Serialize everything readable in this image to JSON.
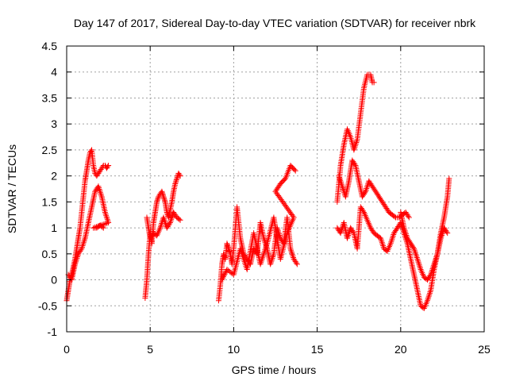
{
  "chart_data": {
    "type": "scatter",
    "title": "Day 147 of 2017, Sidereal Day-to-day VTEC variation (SDTVAR) for receiver nbrk",
    "xlabel": "GPS time / hours",
    "ylabel": "SDTVAR / TECUs",
    "xlim": [
      0,
      25
    ],
    "ylim": [
      -1,
      4.5
    ],
    "x_ticks": [
      0,
      5,
      10,
      15,
      20,
      25
    ],
    "x_tick_labels": [
      "0",
      "5",
      "10",
      "15",
      "20",
      "25"
    ],
    "y_ticks": [
      -1,
      -0.5,
      0,
      0.5,
      1,
      1.5,
      2,
      2.5,
      3,
      3.5,
      4,
      4.5
    ],
    "y_tick_labels": [
      "-1",
      "-0.5",
      "0",
      "0.5",
      "1",
      "1.5",
      "2",
      "2.5",
      "3",
      "3.5",
      "4",
      "4.5"
    ],
    "grid": true,
    "marker": "+",
    "color": "#ff0000",
    "series": [
      {
        "name": "segment-1-upper",
        "x": [
          0.0,
          0.1,
          0.2,
          0.3,
          0.4,
          0.5,
          0.6,
          0.7,
          0.8,
          0.9,
          1.0,
          1.1,
          1.2,
          1.3,
          1.4,
          1.5,
          1.6,
          1.7,
          1.8,
          1.9,
          2.0,
          2.1,
          2.2,
          2.3,
          2.4,
          2.5
        ],
        "y": [
          -0.4,
          -0.2,
          0.0,
          0.1,
          0.25,
          0.4,
          0.6,
          0.8,
          1.0,
          1.3,
          1.6,
          1.9,
          2.1,
          2.3,
          2.45,
          2.5,
          2.2,
          2.05,
          2.0,
          2.05,
          2.1,
          2.15,
          2.2,
          2.2,
          2.15,
          2.2
        ]
      },
      {
        "name": "segment-1-lower",
        "x": [
          0.1,
          0.3,
          0.5,
          0.7,
          0.9,
          1.1,
          1.3,
          1.5,
          1.7,
          1.9,
          2.1,
          2.3,
          2.5,
          1.6,
          1.8,
          2.0,
          2.2
        ],
        "y": [
          0.1,
          0.0,
          0.3,
          0.5,
          0.6,
          0.8,
          1.1,
          1.4,
          1.7,
          1.8,
          1.6,
          1.3,
          1.1,
          1.0,
          1.0,
          1.05,
          1.0
        ]
      },
      {
        "name": "segment-2",
        "x": [
          4.7,
          4.8,
          4.9,
          5.0,
          5.1,
          5.2,
          5.3,
          5.4,
          5.5,
          5.6,
          5.7,
          5.8,
          5.9,
          6.0,
          6.1,
          6.2,
          6.3,
          6.4,
          6.5,
          6.6,
          6.7,
          6.8,
          4.8,
          5.0,
          5.2,
          5.4,
          5.6,
          5.8,
          6.0,
          6.2,
          6.4,
          6.6,
          6.8
        ],
        "y": [
          -0.35,
          0.0,
          0.5,
          0.9,
          0.7,
          1.1,
          1.3,
          1.5,
          1.6,
          1.65,
          1.7,
          1.6,
          1.5,
          1.3,
          1.2,
          1.35,
          1.5,
          1.7,
          1.85,
          1.95,
          2.05,
          2.0,
          1.2,
          0.8,
          0.9,
          0.85,
          1.0,
          1.2,
          1.0,
          1.1,
          1.3,
          1.2,
          1.15
        ]
      },
      {
        "name": "segment-3",
        "x": [
          9.1,
          9.2,
          9.3,
          9.4,
          9.5,
          9.6,
          9.7,
          9.8,
          9.9,
          10.0,
          10.2,
          10.4,
          10.6,
          10.8,
          11.0,
          11.2,
          11.4,
          11.6,
          11.8,
          12.0,
          12.2,
          12.4,
          12.6,
          12.8,
          13.0,
          13.2,
          13.4,
          13.6,
          13.8,
          9.3,
          9.6,
          10.0,
          10.4,
          10.8,
          11.2,
          11.6,
          12.0,
          12.4,
          12.8,
          13.2,
          13.6,
          12.5,
          12.8,
          13.1,
          13.4,
          13.7
        ],
        "y": [
          -0.4,
          -0.1,
          0.3,
          0.5,
          0.4,
          0.7,
          0.6,
          0.5,
          0.3,
          0.6,
          1.4,
          0.8,
          0.5,
          0.4,
          0.3,
          0.6,
          0.5,
          1.1,
          0.8,
          0.6,
          0.3,
          0.5,
          1.0,
          0.8,
          0.7,
          1.2,
          0.6,
          0.4,
          0.3,
          0.0,
          0.2,
          0.1,
          0.6,
          0.2,
          0.9,
          0.3,
          0.7,
          1.2,
          0.4,
          0.9,
          1.2,
          1.7,
          1.85,
          1.95,
          2.2,
          2.1
        ]
      },
      {
        "name": "segment-4-upper",
        "x": [
          16.2,
          16.4,
          16.6,
          16.8,
          17.0,
          17.2,
          17.4,
          17.6,
          17.8,
          18.0,
          18.2,
          18.3,
          18.4
        ],
        "y": [
          1.5,
          2.2,
          2.6,
          2.9,
          2.75,
          2.5,
          2.7,
          3.2,
          3.7,
          3.95,
          3.95,
          3.8,
          3.8
        ]
      },
      {
        "name": "segment-4-middle",
        "x": [
          16.3,
          16.5,
          16.7,
          16.9,
          17.1,
          17.3,
          17.5,
          17.7,
          17.9,
          18.1,
          18.3,
          18.5,
          18.7,
          18.9,
          19.1,
          19.3,
          19.5,
          19.7,
          19.9,
          20.1,
          20.3,
          20.5
        ],
        "y": [
          2.0,
          1.8,
          1.6,
          1.9,
          2.3,
          2.2,
          1.9,
          1.6,
          1.7,
          1.9,
          1.8,
          1.7,
          1.6,
          1.5,
          1.4,
          1.3,
          1.25,
          1.2,
          1.2,
          1.25,
          1.3,
          1.2
        ]
      },
      {
        "name": "segment-4-lower",
        "x": [
          16.2,
          16.4,
          16.6,
          16.8,
          17.0,
          17.2,
          17.4,
          17.6,
          17.8,
          18.0,
          18.2,
          18.4,
          18.6,
          18.8,
          19.0,
          19.2,
          19.4,
          19.6,
          19.8,
          20.0,
          20.2,
          20.4,
          20.6,
          20.8,
          21.0,
          21.2,
          21.4,
          21.6,
          21.8,
          22.0,
          22.2,
          22.4,
          22.6,
          22.8,
          22.9
        ],
        "y": [
          1.0,
          0.9,
          1.1,
          0.8,
          1.0,
          0.9,
          0.6,
          1.4,
          1.3,
          1.15,
          1.0,
          0.9,
          0.85,
          0.8,
          0.6,
          0.55,
          0.7,
          0.9,
          1.0,
          1.1,
          0.9,
          0.7,
          0.4,
          0.1,
          -0.2,
          -0.5,
          -0.55,
          -0.4,
          -0.2,
          0.2,
          0.5,
          0.9,
          1.2,
          1.6,
          1.95
        ]
      },
      {
        "name": "segment-4-lower-loop",
        "x": [
          20.0,
          20.2,
          20.4,
          20.6,
          20.8,
          21.0,
          21.2,
          21.4,
          21.6,
          21.8,
          22.0,
          22.2,
          22.4,
          22.6,
          22.8
        ],
        "y": [
          1.3,
          1.0,
          0.8,
          0.7,
          0.6,
          0.4,
          0.2,
          0.05,
          0.0,
          0.1,
          0.3,
          0.5,
          0.8,
          1.0,
          0.9
        ]
      }
    ]
  }
}
